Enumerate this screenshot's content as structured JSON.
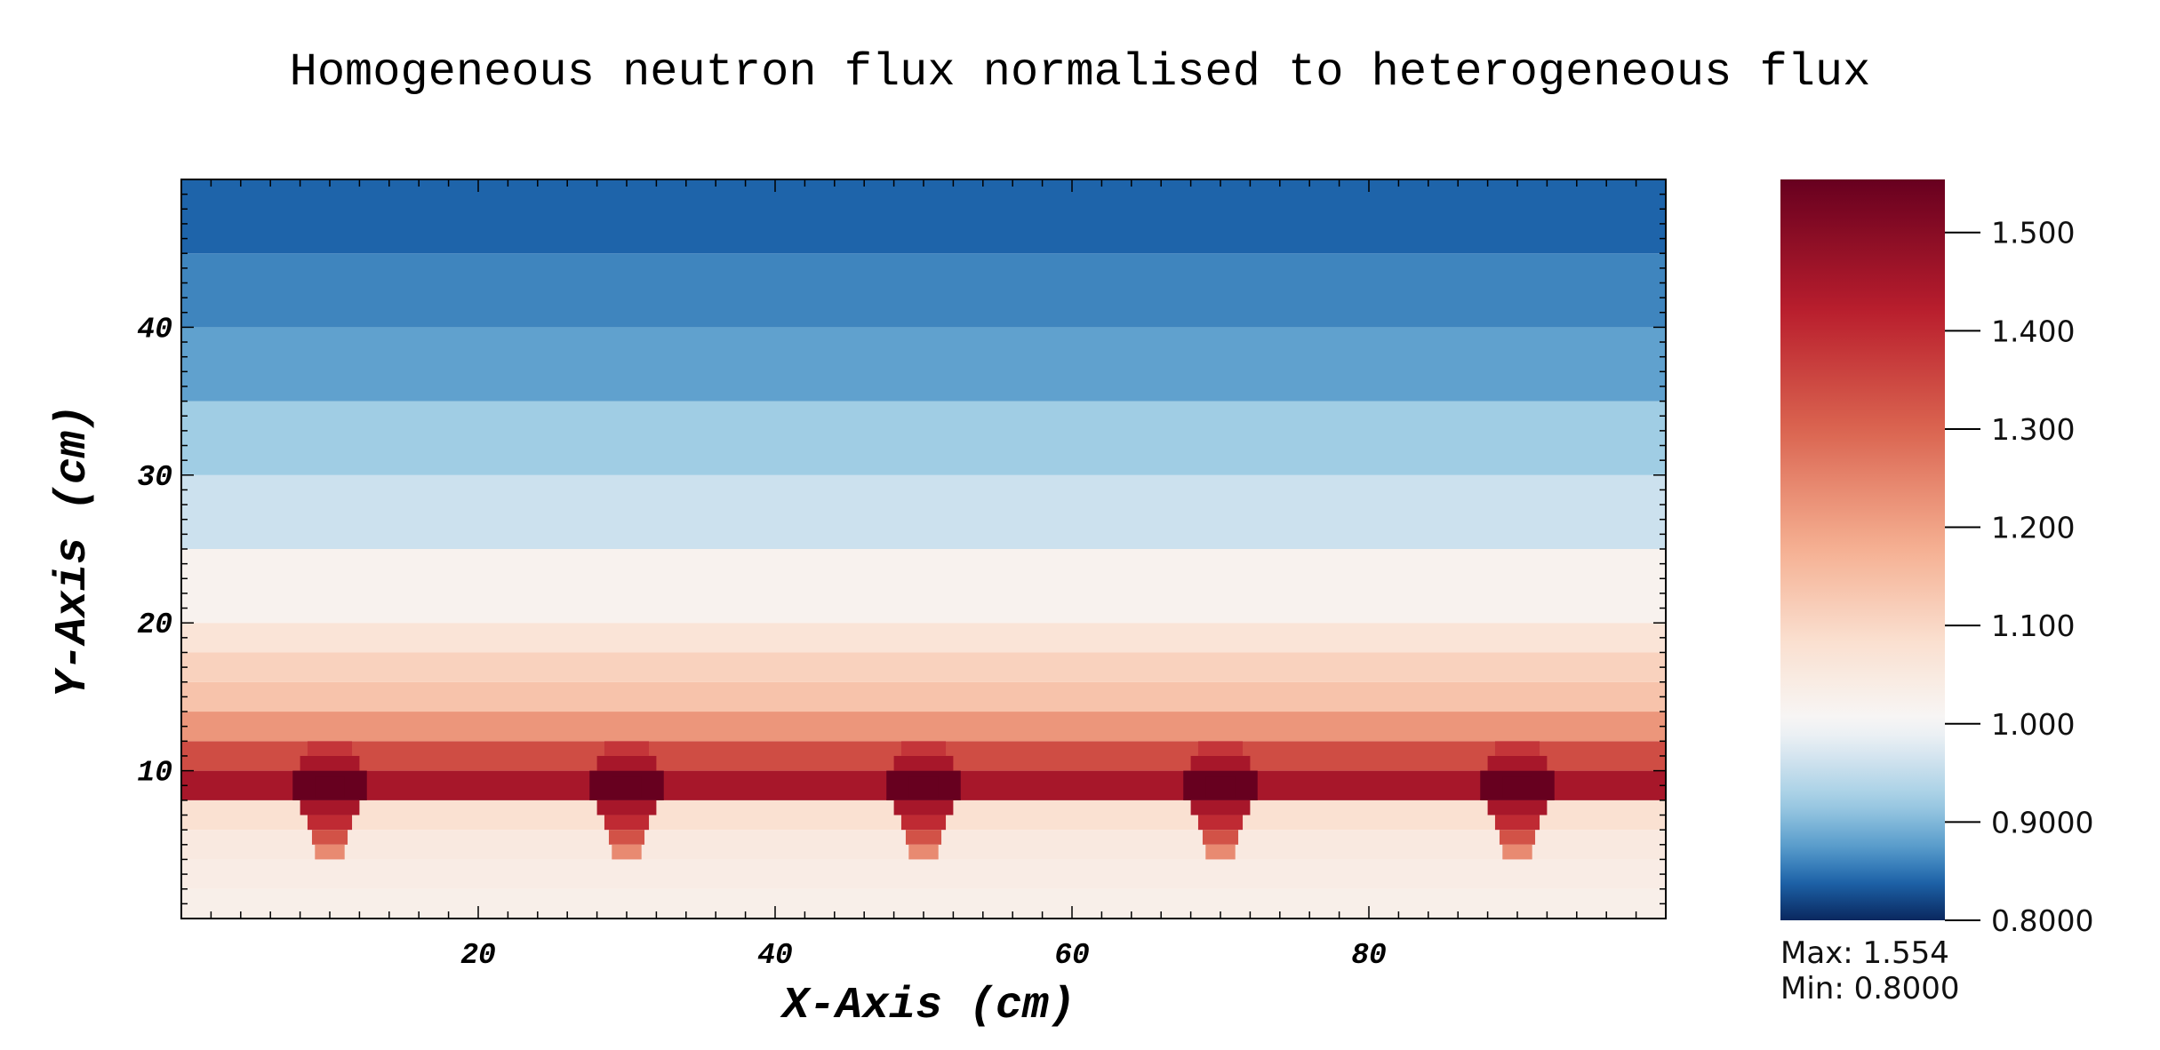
{
  "chart_data": {
    "type": "heatmap",
    "title": "Homogeneous neutron flux normalised to heterogeneous flux",
    "xlabel": "X-Axis (cm)",
    "ylabel": "Y-Axis (cm)",
    "xlim": [
      0,
      100
    ],
    "ylim": [
      0,
      50
    ],
    "x_ticks": [
      20,
      40,
      60,
      80
    ],
    "y_ticks": [
      10,
      20,
      30,
      40
    ],
    "colorbar": {
      "range": [
        0.8,
        1.554
      ],
      "ticks": [
        {
          "value": 1.5,
          "label": "1.500"
        },
        {
          "value": 1.4,
          "label": "1.400"
        },
        {
          "value": 1.3,
          "label": "1.300"
        },
        {
          "value": 1.2,
          "label": "1.200"
        },
        {
          "value": 1.1,
          "label": "1.100"
        },
        {
          "value": 1.0,
          "label": "1.000"
        },
        {
          "value": 0.9,
          "label": "0.9000"
        },
        {
          "value": 0.8,
          "label": "0.8000"
        }
      ],
      "colormap": "diverging blue-white-red",
      "max_label": "Max:  1.554",
      "min_label": "Min:  0.8000"
    },
    "row_bands": [
      {
        "y": [
          0,
          2
        ],
        "value": 1.03
      },
      {
        "y": [
          2,
          4
        ],
        "value": 1.04
      },
      {
        "y": [
          4,
          6
        ],
        "value": 1.05
      },
      {
        "y": [
          6,
          8
        ],
        "value": 1.08
      },
      {
        "y": [
          8,
          10
        ],
        "value": 1.45
      },
      {
        "y": [
          10,
          12
        ],
        "value": 1.34
      },
      {
        "y": [
          12,
          14
        ],
        "value": 1.22
      },
      {
        "y": [
          14,
          16
        ],
        "value": 1.14
      },
      {
        "y": [
          16,
          18
        ],
        "value": 1.11
      },
      {
        "y": [
          18,
          20
        ],
        "value": 1.07
      },
      {
        "y": [
          20,
          25
        ],
        "value": 1.02
      },
      {
        "y": [
          25,
          30
        ],
        "value": 0.96
      },
      {
        "y": [
          30,
          35
        ],
        "value": 0.92
      },
      {
        "y": [
          35,
          40
        ],
        "value": 0.88
      },
      {
        "y": [
          40,
          45
        ],
        "value": 0.86
      },
      {
        "y": [
          45,
          50
        ],
        "value": 0.84
      }
    ],
    "hotspots": [
      {
        "x": 10,
        "peak": 1.554
      },
      {
        "x": 30,
        "peak": 1.554
      },
      {
        "x": 50,
        "peak": 1.554
      },
      {
        "x": 70,
        "peak": 1.554
      },
      {
        "x": 90,
        "peak": 1.554
      }
    ]
  }
}
